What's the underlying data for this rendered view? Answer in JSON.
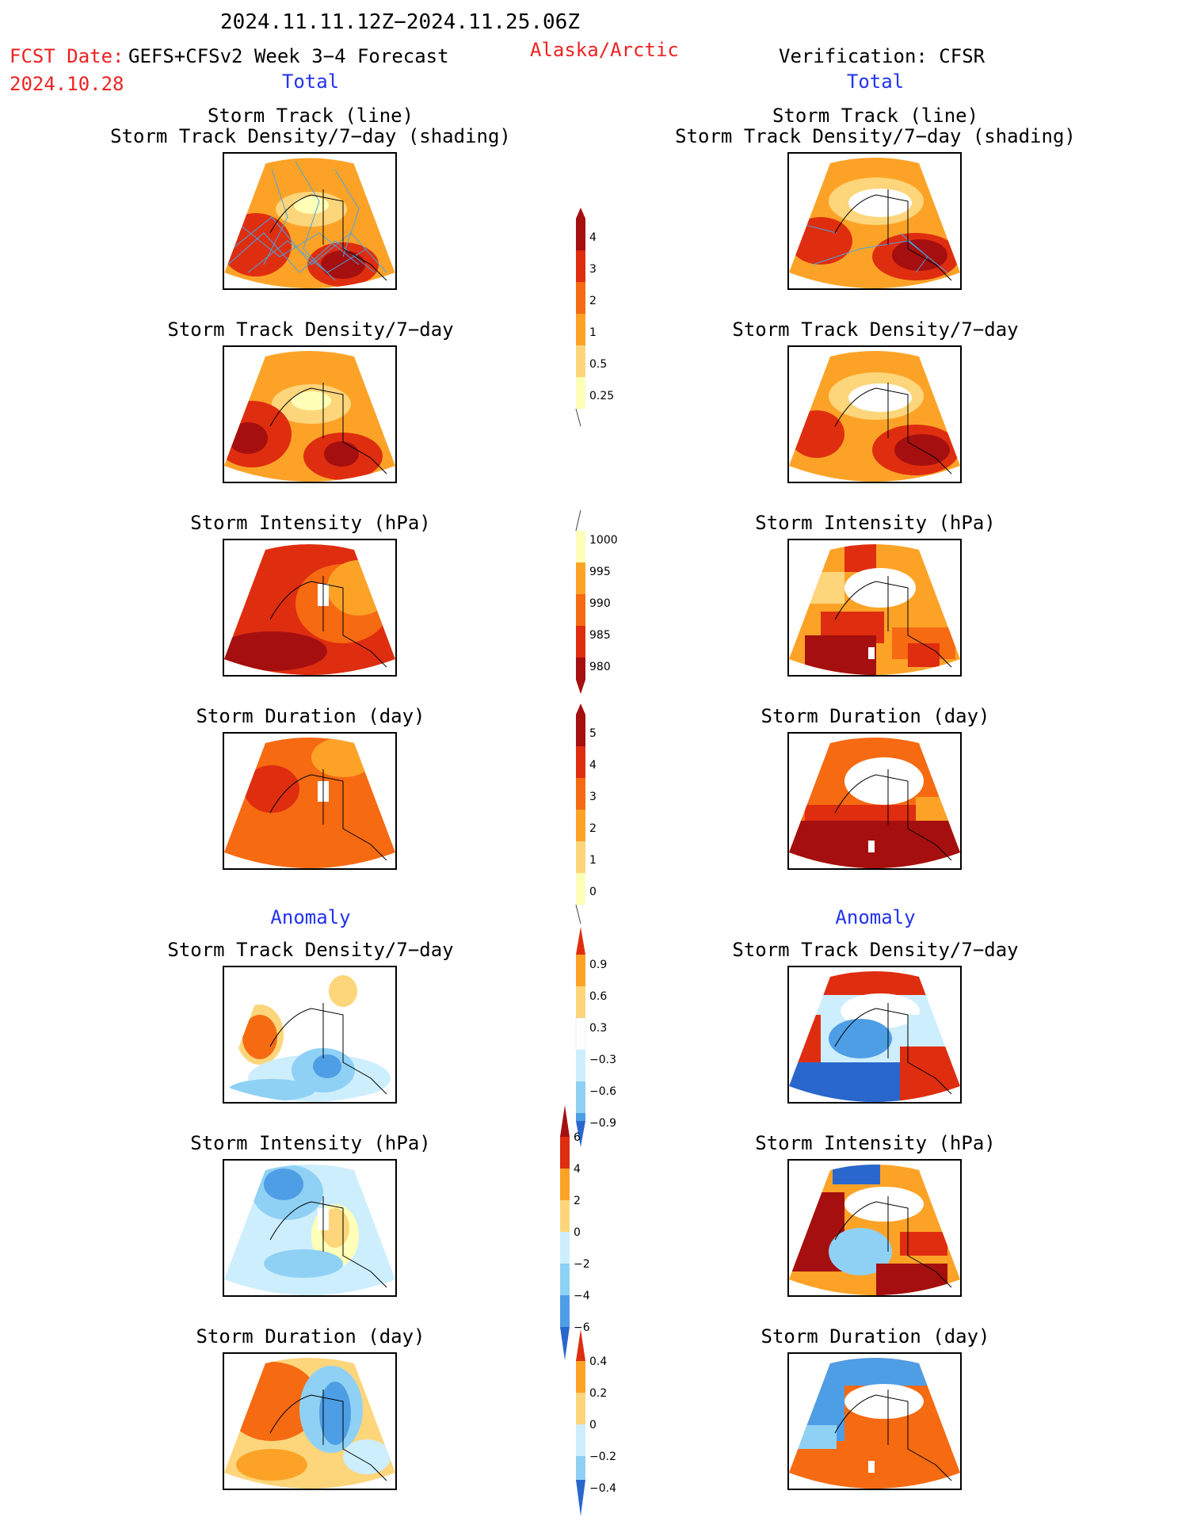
{
  "header": {
    "date_range": "2024.11.11.12Z−2024.11.25.06Z",
    "fcst_date_label": "FCST Date:",
    "fcst_product": "GEFS+CFSv2 Week 3−4 Forecast",
    "fcst_date": "2024.10.28",
    "region": "Alaska/Arctic",
    "verification": "Verification: CFSR"
  },
  "columns": {
    "left_total_label": "Total",
    "right_total_label": "Total",
    "left_anomaly_label": "Anomaly",
    "right_anomaly_label": "Anomaly"
  },
  "panels": {
    "track_title_1": "Storm Track (line)",
    "track_title_2": "Storm Track Density/7−day (shading)",
    "density_title": "Storm Track Density/7−day",
    "intensity_title": "Storm Intensity (hPa)",
    "duration_title": "Storm Duration (day)"
  },
  "colorbars": {
    "density": [
      "4",
      "3",
      "2",
      "1",
      "0.5",
      "0.25"
    ],
    "intensity": [
      "1000",
      "995",
      "990",
      "985",
      "980"
    ],
    "duration": [
      "5",
      "4",
      "3",
      "2",
      "1",
      "0"
    ],
    "density_anom": [
      "0.9",
      "0.6",
      "0.3",
      "−0.3",
      "−0.6",
      "−0.9"
    ],
    "intensity_anom": [
      "6",
      "4",
      "2",
      "0",
      "−2",
      "−4",
      "−6"
    ],
    "duration_anom": [
      "0.4",
      "0.2",
      "0",
      "−0.2",
      "−0.4"
    ]
  },
  "colors": {
    "title_red": "#ee2222",
    "title_blue": "#2233ee",
    "warm_scale": [
      "#ffffb8",
      "#fdd57a",
      "#fca327",
      "#f66a12",
      "#df2d10",
      "#a50f0f"
    ],
    "cool_scale": [
      "#cdeefd",
      "#8fd1f5",
      "#4e9ee6",
      "#2a67cc"
    ],
    "track_line": "#4aa3df"
  }
}
